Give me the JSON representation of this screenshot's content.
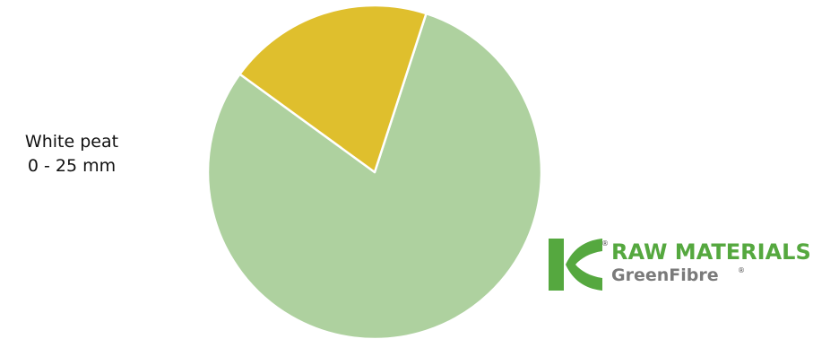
{
  "chart_data": {
    "type": "pie",
    "title": "",
    "label_lines": [
      "White peat",
      "0 - 25 mm"
    ],
    "slices": [
      {
        "value": 80,
        "color": "#aed19f"
      },
      {
        "value": 20,
        "color": "#dfbf2d"
      }
    ],
    "start_angle_deg": 72,
    "direction": "clockwise"
  },
  "logo": {
    "line1": "RAW MATERIALS",
    "line2": "GreenFibre",
    "registered_mark": "®",
    "colors": {
      "mark": "#55a83f",
      "line1": "#55a83f",
      "line2": "#7a7a7a"
    }
  }
}
